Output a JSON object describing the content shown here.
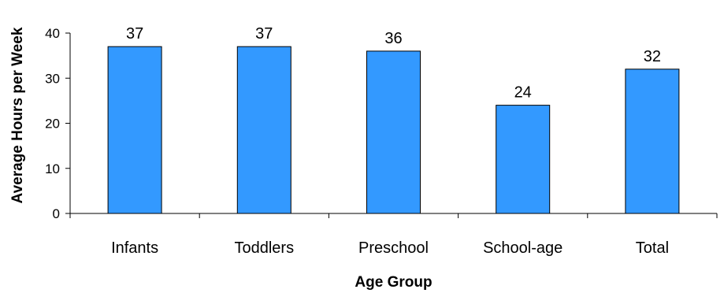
{
  "chart_data": {
    "type": "bar",
    "categories": [
      "Infants",
      "Toddlers",
      "Preschool",
      "School-age",
      "Total"
    ],
    "values": [
      37,
      37,
      36,
      24,
      32
    ],
    "data_labels": [
      "37",
      "37",
      "36",
      "24",
      "32"
    ],
    "xlabel": "Age Group",
    "ylabel": "Average Hours per Week",
    "ylim": [
      0,
      40
    ],
    "yticks": [
      "0",
      "10",
      "20",
      "30",
      "40"
    ],
    "ytick_values": [
      0,
      10,
      20,
      30,
      40
    ],
    "grid": false,
    "legend": "none",
    "bar_color": "#3399FF"
  }
}
